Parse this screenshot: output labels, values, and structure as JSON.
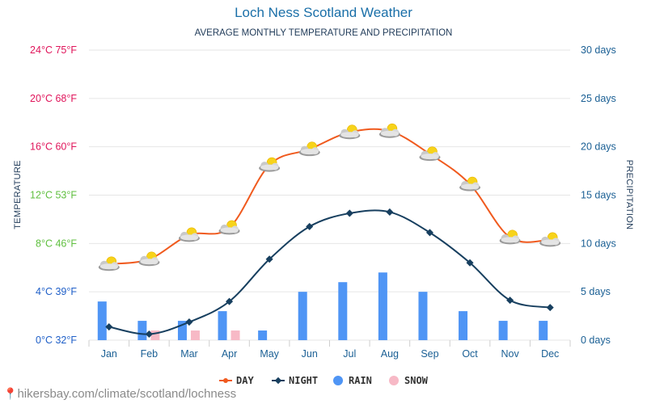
{
  "title": "Loch Ness Scotland Weather",
  "subtitle": "AVERAGE MONTHLY TEMPERATURE AND PRECIPITATION",
  "footer_url": "hikersbay.com/climate/scotland/lochness",
  "colors": {
    "day": "#f05a1e",
    "night": "#173f5f",
    "rain": "#4f95f5",
    "snow": "#f7b9c6",
    "grid": "#e6e6e6",
    "temp_warm": "#e0145a",
    "temp_mild": "#5fbf3f",
    "temp_cold": "#2060c8"
  },
  "chart_data": {
    "type": "line+bar",
    "categories": [
      "Jan",
      "Feb",
      "Mar",
      "Apr",
      "May",
      "Jun",
      "Jul",
      "Aug",
      "Sep",
      "Oct",
      "Nov",
      "Dec"
    ],
    "series": [
      {
        "name": "DAY",
        "axis": "temperature",
        "values": [
          6.3,
          6.7,
          8.7,
          9.3,
          14.5,
          15.8,
          17.2,
          17.3,
          15.4,
          12.9,
          8.5,
          8.3
        ]
      },
      {
        "name": "NIGHT",
        "axis": "temperature",
        "values": [
          1.1,
          0.5,
          1.5,
          3.2,
          6.7,
          9.4,
          10.5,
          10.6,
          8.9,
          6.4,
          3.3,
          2.7
        ]
      },
      {
        "name": "RAIN",
        "axis": "precipitation",
        "values": [
          4,
          2,
          2,
          3,
          1,
          5,
          6,
          7,
          5,
          3,
          2,
          2
        ]
      },
      {
        "name": "SNOW",
        "axis": "precipitation",
        "values": [
          0,
          1,
          1,
          1,
          0,
          0,
          0,
          0,
          0,
          0,
          0,
          0
        ]
      }
    ],
    "left_axis": {
      "label": "TEMPERATURE",
      "range": [
        0,
        24
      ],
      "ticks": [
        {
          "value": 0,
          "label": "0°C 32°F",
          "band": "cold"
        },
        {
          "value": 4,
          "label": "4°C 39°F",
          "band": "cold"
        },
        {
          "value": 8,
          "label": "8°C 46°F",
          "band": "mild"
        },
        {
          "value": 12,
          "label": "12°C 53°F",
          "band": "mild"
        },
        {
          "value": 16,
          "label": "16°C 60°F",
          "band": "warm"
        },
        {
          "value": 20,
          "label": "20°C 68°F",
          "band": "warm"
        },
        {
          "value": 24,
          "label": "24°C 75°F",
          "band": "warm"
        }
      ]
    },
    "right_axis": {
      "label": "PRECIPITATION",
      "range": [
        0,
        30
      ],
      "ticks": [
        {
          "value": 0,
          "label": "0 days"
        },
        {
          "value": 5,
          "label": "5 days"
        },
        {
          "value": 10,
          "label": "10 days"
        },
        {
          "value": 15,
          "label": "15 days"
        },
        {
          "value": 20,
          "label": "20 days"
        },
        {
          "value": 25,
          "label": "25 days"
        },
        {
          "value": 30,
          "label": "30 days"
        }
      ]
    },
    "weather_icon": "sun-behind-cloud-icon",
    "legend": [
      "DAY",
      "NIGHT",
      "RAIN",
      "SNOW"
    ],
    "legend_position": "bottom"
  }
}
